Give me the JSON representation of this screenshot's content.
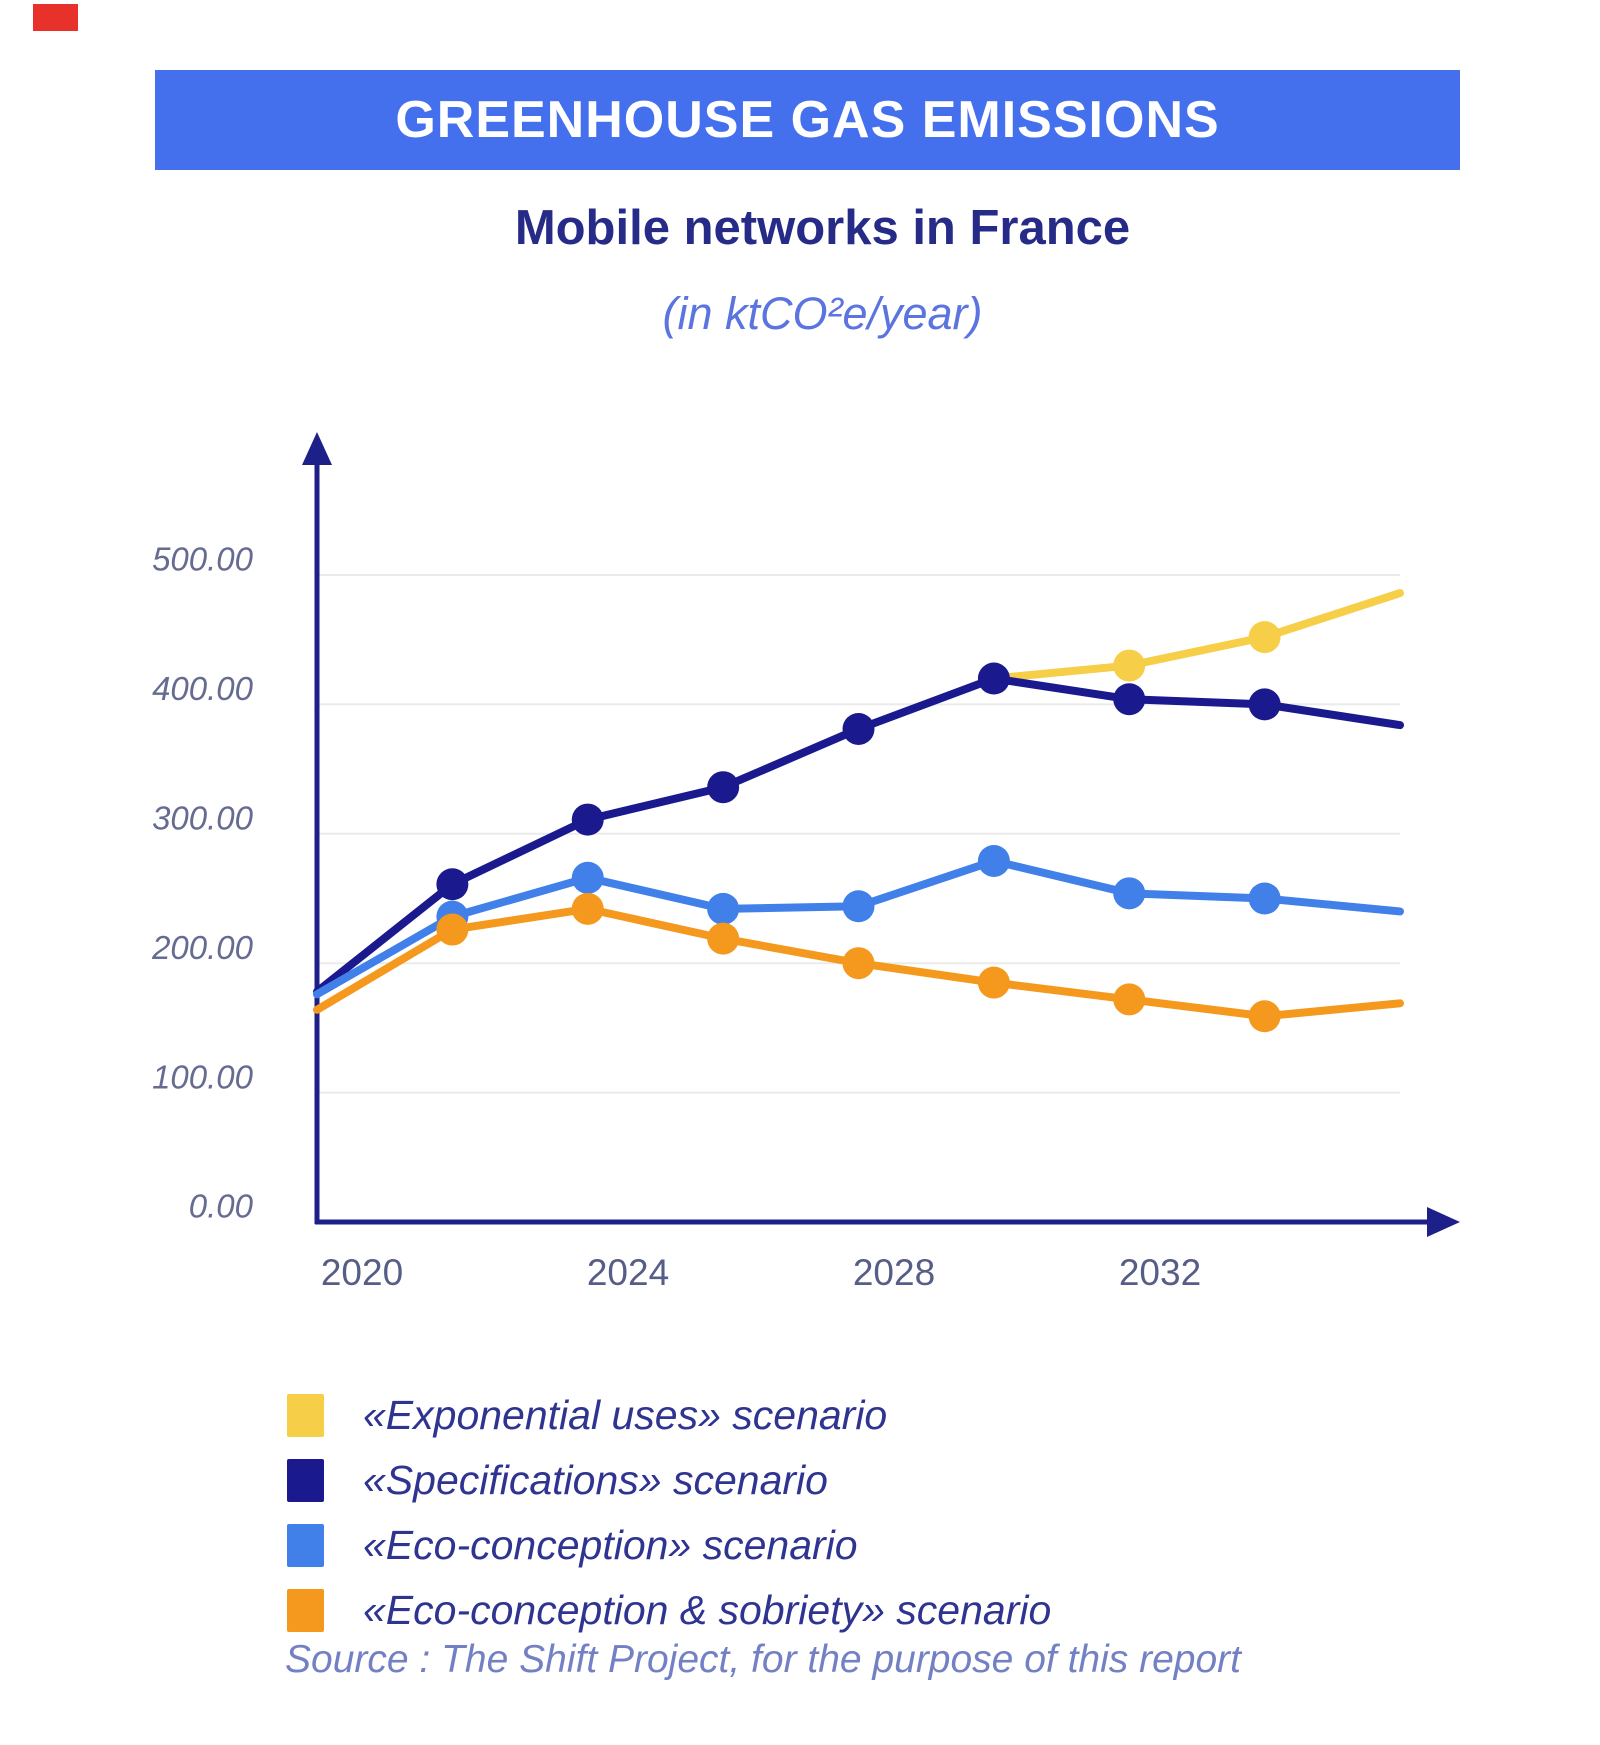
{
  "decor": {
    "corner_mark_color": "#e8312a"
  },
  "banner": {
    "title": "GREENHOUSE GAS EMISSIONS",
    "bg_color": "#4470ee",
    "text_color": "#ffffff"
  },
  "subtitle": "Mobile networks in France",
  "unit_label": "(in ktCO²e/year)",
  "source": "Source : The Shift Project, for the purpose of this report",
  "chart_data": {
    "type": "line",
    "title": "Mobile networks in France",
    "ylabel": "ktCO2e/year",
    "ylim": [
      0,
      500
    ],
    "grid": true,
    "x": [
      2019,
      2021,
      2023,
      2025,
      2027,
      2029,
      2031,
      2033,
      2035
    ],
    "x_tick_labels": [
      "2020",
      "2024",
      "2028",
      "2032"
    ],
    "y_tick_labels": [
      "500.00",
      "400.00",
      "300.00",
      "200.00",
      "100.00",
      "0.00"
    ],
    "y_tick_values": [
      500,
      400,
      300,
      200,
      100,
      0
    ],
    "axis_color": "#1d2088",
    "grid_color": "#ebebeb",
    "series": [
      {
        "name": "«Exponential uses» scenario",
        "color": "#f6ce47",
        "x": [
          2029,
          2031,
          2033,
          2035
        ],
        "values": [
          420,
          430,
          452,
          486
        ],
        "marker_x": [
          2031,
          2033
        ]
      },
      {
        "name": "«Specifications» scenario",
        "color": "#1a1a8e",
        "values": [
          178,
          261,
          311,
          336,
          381,
          420,
          404,
          400,
          384
        ]
      },
      {
        "name": "«Eco-conception» scenario",
        "color": "#4080e8",
        "values": [
          176,
          236,
          266,
          242,
          244,
          279,
          254,
          250,
          240
        ]
      },
      {
        "name": "«Eco-conception & sobriety» scenario",
        "color": "#f4991d",
        "values": [
          164,
          226,
          242,
          219,
          200,
          185,
          172,
          159,
          169
        ]
      }
    ],
    "legend_position": "bottom-left"
  }
}
